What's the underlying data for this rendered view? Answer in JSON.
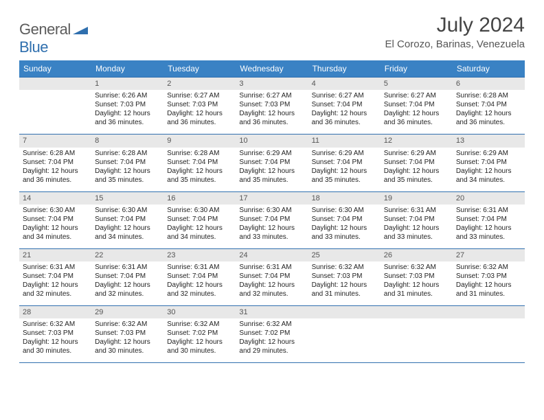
{
  "logo": {
    "general": "General",
    "blue": "Blue"
  },
  "title": "July 2024",
  "location": "El Corozo, Barinas, Venezuela",
  "colors": {
    "header_bg": "#3a82c4",
    "header_text": "#ffffff",
    "daynum_bg": "#e8e8e8",
    "border": "#2f6fae",
    "logo_gray": "#5b5b5b",
    "logo_blue": "#2f6fae"
  },
  "weekdays": [
    "Sunday",
    "Monday",
    "Tuesday",
    "Wednesday",
    "Thursday",
    "Friday",
    "Saturday"
  ],
  "weeks": [
    {
      "nums": [
        "",
        "1",
        "2",
        "3",
        "4",
        "5",
        "6"
      ],
      "cells": [
        null,
        {
          "sunrise": "Sunrise: 6:26 AM",
          "sunset": "Sunset: 7:03 PM",
          "day1": "Daylight: 12 hours",
          "day2": "and 36 minutes."
        },
        {
          "sunrise": "Sunrise: 6:27 AM",
          "sunset": "Sunset: 7:03 PM",
          "day1": "Daylight: 12 hours",
          "day2": "and 36 minutes."
        },
        {
          "sunrise": "Sunrise: 6:27 AM",
          "sunset": "Sunset: 7:03 PM",
          "day1": "Daylight: 12 hours",
          "day2": "and 36 minutes."
        },
        {
          "sunrise": "Sunrise: 6:27 AM",
          "sunset": "Sunset: 7:04 PM",
          "day1": "Daylight: 12 hours",
          "day2": "and 36 minutes."
        },
        {
          "sunrise": "Sunrise: 6:27 AM",
          "sunset": "Sunset: 7:04 PM",
          "day1": "Daylight: 12 hours",
          "day2": "and 36 minutes."
        },
        {
          "sunrise": "Sunrise: 6:28 AM",
          "sunset": "Sunset: 7:04 PM",
          "day1": "Daylight: 12 hours",
          "day2": "and 36 minutes."
        }
      ]
    },
    {
      "nums": [
        "7",
        "8",
        "9",
        "10",
        "11",
        "12",
        "13"
      ],
      "cells": [
        {
          "sunrise": "Sunrise: 6:28 AM",
          "sunset": "Sunset: 7:04 PM",
          "day1": "Daylight: 12 hours",
          "day2": "and 36 minutes."
        },
        {
          "sunrise": "Sunrise: 6:28 AM",
          "sunset": "Sunset: 7:04 PM",
          "day1": "Daylight: 12 hours",
          "day2": "and 35 minutes."
        },
        {
          "sunrise": "Sunrise: 6:28 AM",
          "sunset": "Sunset: 7:04 PM",
          "day1": "Daylight: 12 hours",
          "day2": "and 35 minutes."
        },
        {
          "sunrise": "Sunrise: 6:29 AM",
          "sunset": "Sunset: 7:04 PM",
          "day1": "Daylight: 12 hours",
          "day2": "and 35 minutes."
        },
        {
          "sunrise": "Sunrise: 6:29 AM",
          "sunset": "Sunset: 7:04 PM",
          "day1": "Daylight: 12 hours",
          "day2": "and 35 minutes."
        },
        {
          "sunrise": "Sunrise: 6:29 AM",
          "sunset": "Sunset: 7:04 PM",
          "day1": "Daylight: 12 hours",
          "day2": "and 35 minutes."
        },
        {
          "sunrise": "Sunrise: 6:29 AM",
          "sunset": "Sunset: 7:04 PM",
          "day1": "Daylight: 12 hours",
          "day2": "and 34 minutes."
        }
      ]
    },
    {
      "nums": [
        "14",
        "15",
        "16",
        "17",
        "18",
        "19",
        "20"
      ],
      "cells": [
        {
          "sunrise": "Sunrise: 6:30 AM",
          "sunset": "Sunset: 7:04 PM",
          "day1": "Daylight: 12 hours",
          "day2": "and 34 minutes."
        },
        {
          "sunrise": "Sunrise: 6:30 AM",
          "sunset": "Sunset: 7:04 PM",
          "day1": "Daylight: 12 hours",
          "day2": "and 34 minutes."
        },
        {
          "sunrise": "Sunrise: 6:30 AM",
          "sunset": "Sunset: 7:04 PM",
          "day1": "Daylight: 12 hours",
          "day2": "and 34 minutes."
        },
        {
          "sunrise": "Sunrise: 6:30 AM",
          "sunset": "Sunset: 7:04 PM",
          "day1": "Daylight: 12 hours",
          "day2": "and 33 minutes."
        },
        {
          "sunrise": "Sunrise: 6:30 AM",
          "sunset": "Sunset: 7:04 PM",
          "day1": "Daylight: 12 hours",
          "day2": "and 33 minutes."
        },
        {
          "sunrise": "Sunrise: 6:31 AM",
          "sunset": "Sunset: 7:04 PM",
          "day1": "Daylight: 12 hours",
          "day2": "and 33 minutes."
        },
        {
          "sunrise": "Sunrise: 6:31 AM",
          "sunset": "Sunset: 7:04 PM",
          "day1": "Daylight: 12 hours",
          "day2": "and 33 minutes."
        }
      ]
    },
    {
      "nums": [
        "21",
        "22",
        "23",
        "24",
        "25",
        "26",
        "27"
      ],
      "cells": [
        {
          "sunrise": "Sunrise: 6:31 AM",
          "sunset": "Sunset: 7:04 PM",
          "day1": "Daylight: 12 hours",
          "day2": "and 32 minutes."
        },
        {
          "sunrise": "Sunrise: 6:31 AM",
          "sunset": "Sunset: 7:04 PM",
          "day1": "Daylight: 12 hours",
          "day2": "and 32 minutes."
        },
        {
          "sunrise": "Sunrise: 6:31 AM",
          "sunset": "Sunset: 7:04 PM",
          "day1": "Daylight: 12 hours",
          "day2": "and 32 minutes."
        },
        {
          "sunrise": "Sunrise: 6:31 AM",
          "sunset": "Sunset: 7:04 PM",
          "day1": "Daylight: 12 hours",
          "day2": "and 32 minutes."
        },
        {
          "sunrise": "Sunrise: 6:32 AM",
          "sunset": "Sunset: 7:03 PM",
          "day1": "Daylight: 12 hours",
          "day2": "and 31 minutes."
        },
        {
          "sunrise": "Sunrise: 6:32 AM",
          "sunset": "Sunset: 7:03 PM",
          "day1": "Daylight: 12 hours",
          "day2": "and 31 minutes."
        },
        {
          "sunrise": "Sunrise: 6:32 AM",
          "sunset": "Sunset: 7:03 PM",
          "day1": "Daylight: 12 hours",
          "day2": "and 31 minutes."
        }
      ]
    },
    {
      "nums": [
        "28",
        "29",
        "30",
        "31",
        "",
        "",
        ""
      ],
      "cells": [
        {
          "sunrise": "Sunrise: 6:32 AM",
          "sunset": "Sunset: 7:03 PM",
          "day1": "Daylight: 12 hours",
          "day2": "and 30 minutes."
        },
        {
          "sunrise": "Sunrise: 6:32 AM",
          "sunset": "Sunset: 7:03 PM",
          "day1": "Daylight: 12 hours",
          "day2": "and 30 minutes."
        },
        {
          "sunrise": "Sunrise: 6:32 AM",
          "sunset": "Sunset: 7:02 PM",
          "day1": "Daylight: 12 hours",
          "day2": "and 30 minutes."
        },
        {
          "sunrise": "Sunrise: 6:32 AM",
          "sunset": "Sunset: 7:02 PM",
          "day1": "Daylight: 12 hours",
          "day2": "and 29 minutes."
        },
        null,
        null,
        null
      ]
    }
  ]
}
